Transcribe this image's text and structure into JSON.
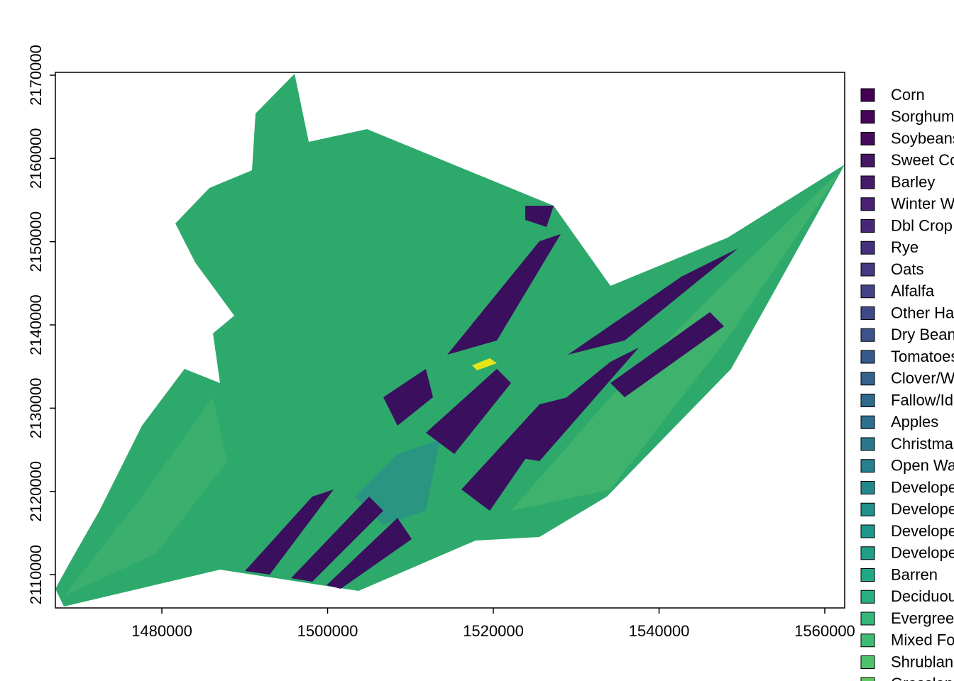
{
  "chart_data": {
    "type": "raster-map",
    "xlim": [
      1467150,
      1562400
    ],
    "ylim": [
      2106000,
      2170340
    ],
    "xticks": [
      1480000,
      1500000,
      1520000,
      1540000,
      1560000
    ],
    "yticks": [
      2110000,
      2120000,
      2130000,
      2140000,
      2150000,
      2160000,
      2170000
    ],
    "legend": [
      {
        "label": "Corn",
        "color": "#440154"
      },
      {
        "label": "Sorghum",
        "color": "#45065a"
      },
      {
        "label": "Soybeans",
        "color": "#460b5e"
      },
      {
        "label": "Sweet Corn",
        "color": "#471365"
      },
      {
        "label": "Barley",
        "color": "#481a6c"
      },
      {
        "label": "Winter Wheat",
        "color": "#482173"
      },
      {
        "label": "Dbl Crop WinWht/Soybeans",
        "color": "#472878"
      },
      {
        "label": "Rye",
        "color": "#46307e"
      },
      {
        "label": "Oats",
        "color": "#443983"
      },
      {
        "label": "Alfalfa",
        "color": "#414287"
      },
      {
        "label": "Other Hay/Non Alfalfa",
        "color": "#3e4a89"
      },
      {
        "label": "Dry Beans",
        "color": "#3b528b"
      },
      {
        "label": "Tomatoes",
        "color": "#375a8c"
      },
      {
        "label": "Clover/Wildflowers",
        "color": "#33628d"
      },
      {
        "label": "Fallow/Idle Cropland",
        "color": "#30698e"
      },
      {
        "label": "Apples",
        "color": "#2c718e"
      },
      {
        "label": "Christmas Trees",
        "color": "#29788e"
      },
      {
        "label": "Open Water",
        "color": "#26808e"
      },
      {
        "label": "Developed/Open Space",
        "color": "#23878e"
      },
      {
        "label": "Developed/Low Intensity",
        "color": "#21908c"
      },
      {
        "label": "Developed/Med Intensity",
        "color": "#1f978b"
      },
      {
        "label": "Developed/High Intensity",
        "color": "#1f9f88"
      },
      {
        "label": "Barren",
        "color": "#22a785"
      },
      {
        "label": "Deciduous Forest",
        "color": "#28ae80"
      },
      {
        "label": "Evergreen Forest",
        "color": "#32b67a"
      },
      {
        "label": "Mixed Forest",
        "color": "#3fbc73"
      },
      {
        "label": "Shrubland",
        "color": "#4ec36b"
      },
      {
        "label": "Grassland/Pasture",
        "color": "#5ec962"
      }
    ]
  }
}
